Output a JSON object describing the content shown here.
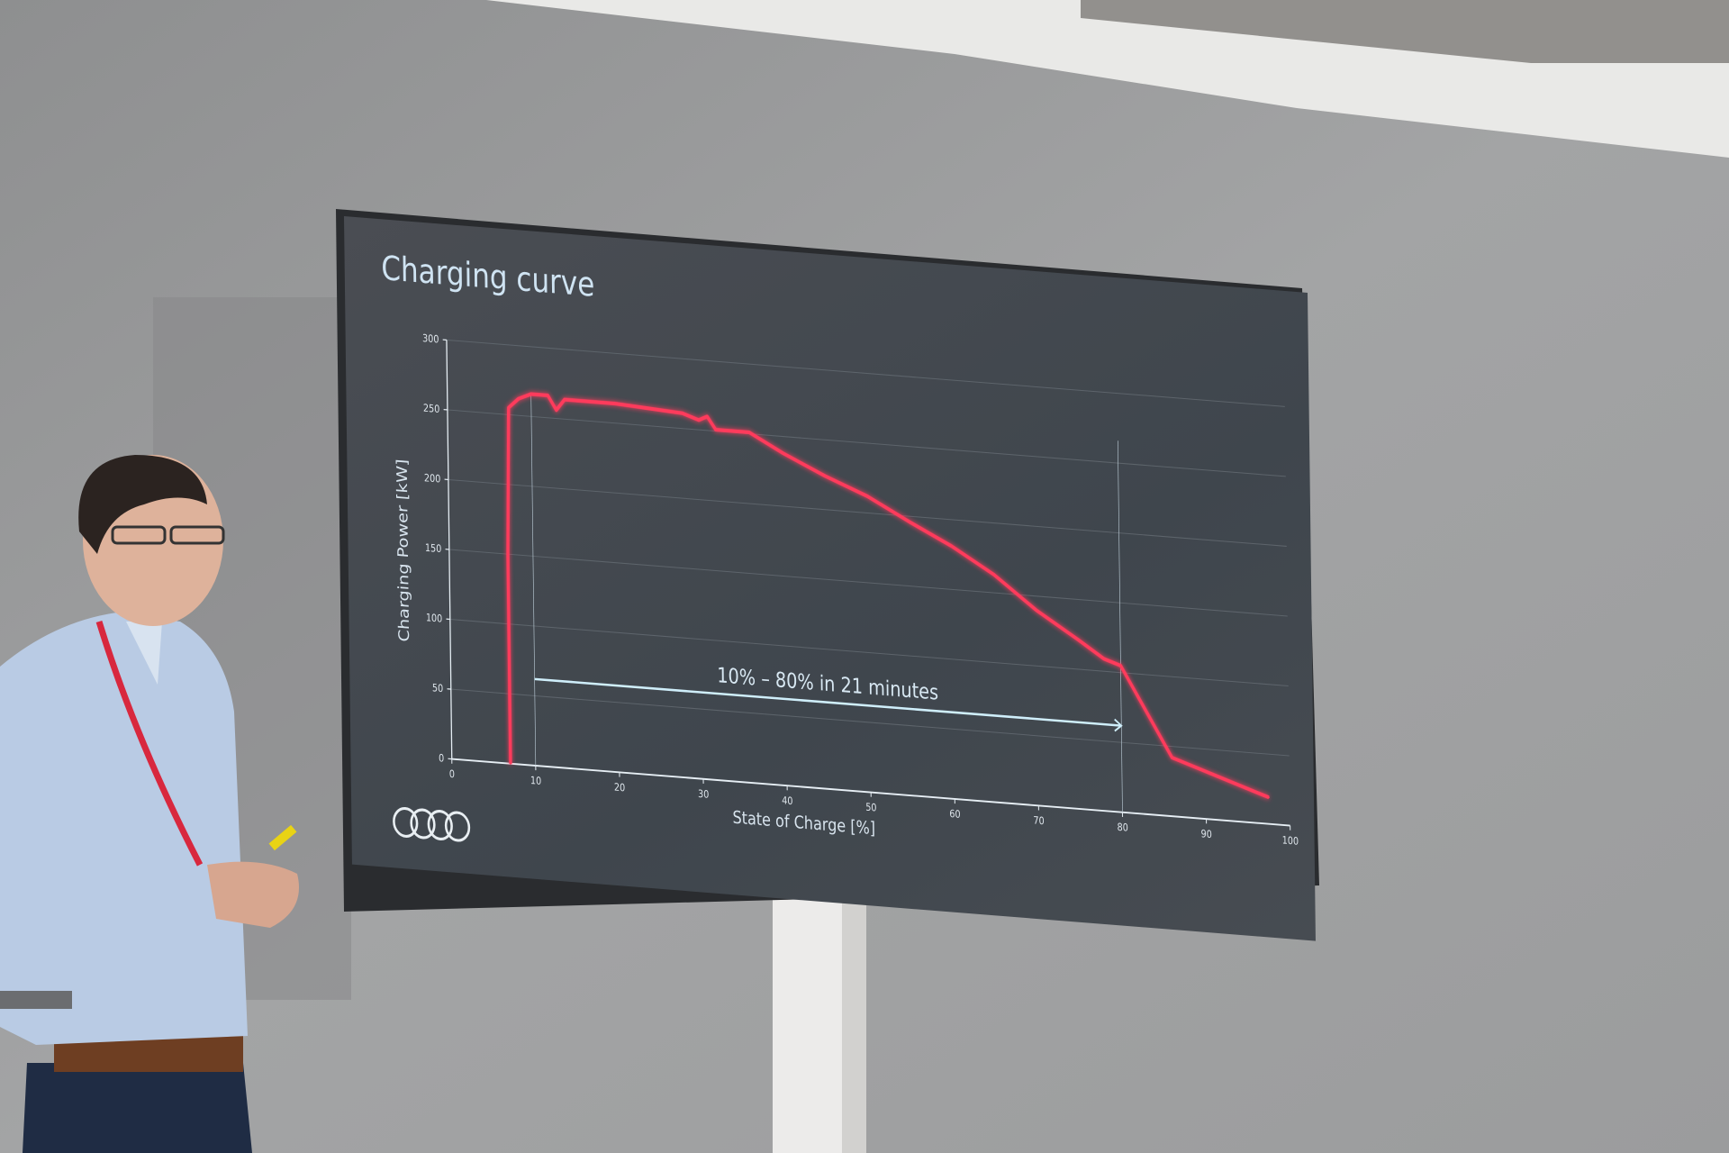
{
  "chart_data": {
    "type": "line",
    "title": "Charging curve",
    "xlabel": "State of Charge [%]",
    "ylabel": "Charging Power [kW]",
    "xlim": [
      0,
      100
    ],
    "ylim": [
      0,
      300
    ],
    "xticks": [
      "0",
      "10",
      "20",
      "30",
      "40",
      "50",
      "60",
      "70",
      "80",
      "90",
      "100"
    ],
    "yticks": [
      "0",
      "50",
      "100",
      "150",
      "200",
      "250",
      "300"
    ],
    "grid": true,
    "series": [
      {
        "color": "#ff3b5c",
        "points": [
          [
            7,
            0
          ],
          [
            7,
            150
          ],
          [
            7.3,
            255
          ],
          [
            8.5,
            262
          ],
          [
            10,
            266
          ],
          [
            12,
            266
          ],
          [
            13,
            256
          ],
          [
            14,
            264
          ],
          [
            20,
            264
          ],
          [
            28,
            261
          ],
          [
            30,
            257
          ],
          [
            31,
            260
          ],
          [
            32,
            251
          ],
          [
            36,
            251
          ],
          [
            40,
            238
          ],
          [
            45,
            224
          ],
          [
            50,
            212
          ],
          [
            55,
            196
          ],
          [
            60,
            181
          ],
          [
            65,
            163
          ],
          [
            70,
            140
          ],
          [
            75,
            121
          ],
          [
            78,
            109
          ],
          [
            80,
            105
          ],
          [
            86,
            42
          ],
          [
            97.5,
            19
          ]
        ]
      }
    ],
    "annotation": {
      "text": "10% – 80% in 21 minutes",
      "from_x": 10,
      "to_x": 80,
      "y": 62,
      "color": "#cfeefa"
    },
    "reference_lines_x": [
      10,
      80
    ]
  },
  "logo": "four-rings-logo",
  "colors": {
    "screen": "#3b4046",
    "wall": "#9a9b9c",
    "curve": "#ff3b5c",
    "text": "#cfe3f2"
  }
}
